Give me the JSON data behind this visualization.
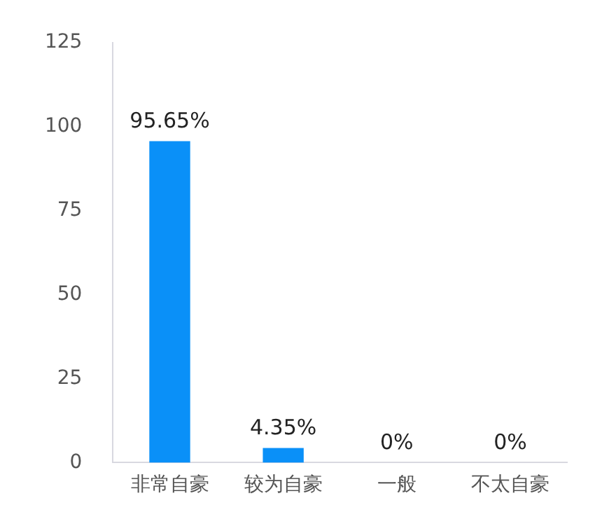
{
  "chart_data": {
    "type": "bar",
    "categories": [
      "非常自豪",
      "较为自豪",
      "一般",
      "不太自豪"
    ],
    "values": [
      95.65,
      4.35,
      0,
      0
    ],
    "color": "#0a90f8",
    "value_labels": [
      "95.65%",
      "4.35%",
      "0%",
      "0%"
    ],
    "ylim": [
      0,
      125
    ],
    "yticks": [
      0,
      25,
      50,
      75,
      100,
      125
    ],
    "grid": false,
    "legend": false
  }
}
